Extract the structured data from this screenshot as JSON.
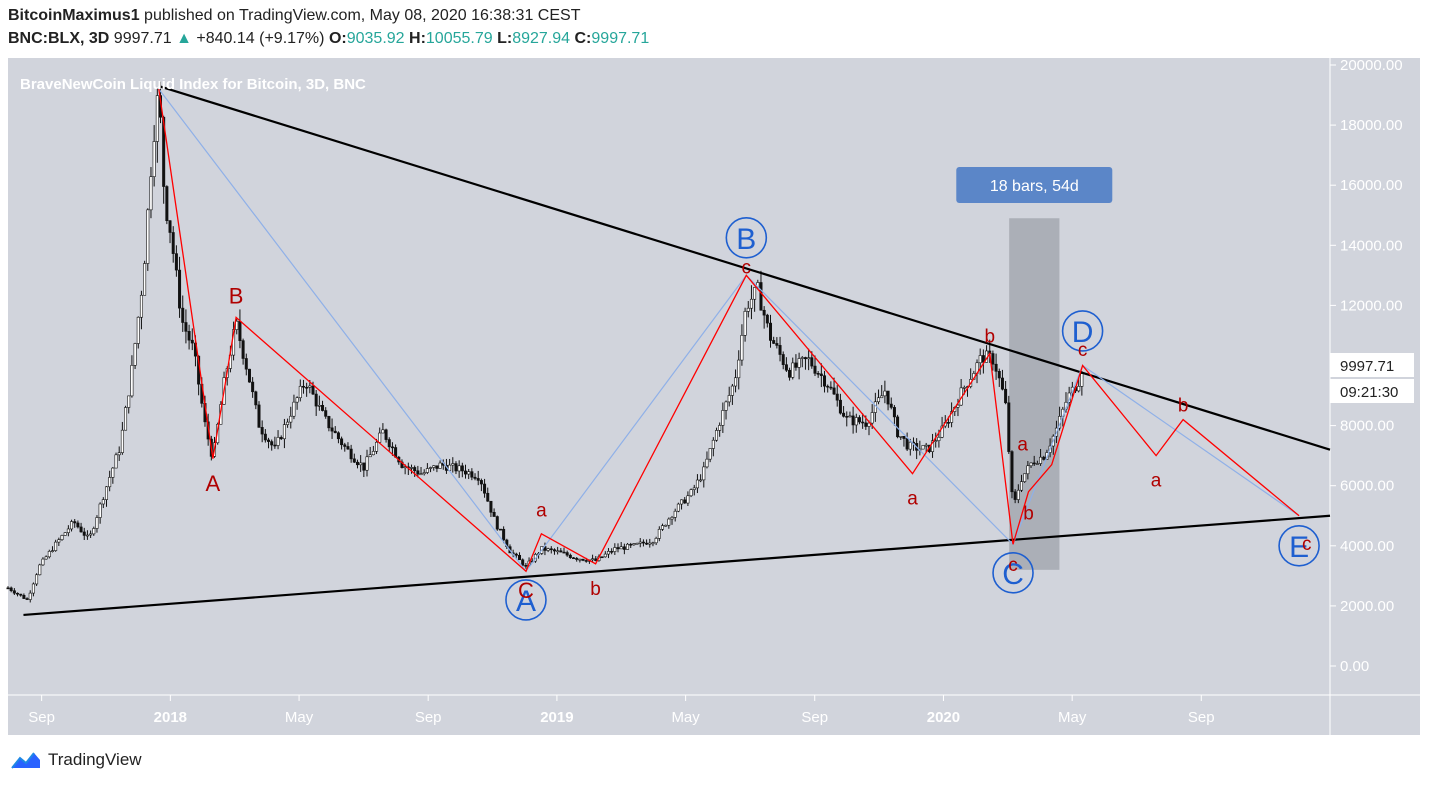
{
  "header": {
    "author": "BitcoinMaximus1",
    "published": " published on TradingView.com, May 08, 2020 16:38:31 CEST",
    "symbol": "BNC:BLX, 3D",
    "last": "9997.71",
    "change_arrow": "▲",
    "change": "+840.14 (+9.17%)",
    "o_label": "O:",
    "o_value": "9035.92",
    "h_label": "H:",
    "h_value": "10055.79",
    "l_label": "L:",
    "l_value": "8927.94",
    "c_label": "C:",
    "c_value": "9997.71"
  },
  "chart_data": {
    "type": "candlestick",
    "title": "BraveNewCoin Liquid Index for Bitcoin, 3D, BNC",
    "ylim": [
      -1000,
      20000
    ],
    "yticks": [
      "20000.00",
      "18000.00",
      "16000.00",
      "14000.00",
      "12000.00",
      "10000.00",
      "8000.00",
      "6000.00",
      "4000.00",
      "2000.00",
      "0.00"
    ],
    "xticks": [
      "Sep",
      "2018",
      "May",
      "Sep",
      "2019",
      "May",
      "Sep",
      "2020",
      "May",
      "Sep"
    ],
    "price_label": "9997.71",
    "countdown_label": "09:21:30",
    "range_box_label": "18 bars, 54d",
    "price_path": [
      [
        2017.58,
        2600
      ],
      [
        2017.63,
        2200
      ],
      [
        2017.66,
        3300
      ],
      [
        2017.7,
        4000
      ],
      [
        2017.75,
        4800
      ],
      [
        2017.79,
        4200
      ],
      [
        2017.83,
        5800
      ],
      [
        2017.87,
        7300
      ],
      [
        2017.9,
        9800
      ],
      [
        2017.93,
        13000
      ],
      [
        2017.955,
        17500
      ],
      [
        2017.97,
        19200
      ],
      [
        2017.985,
        15500
      ],
      [
        2018.0,
        14500
      ],
      [
        2018.03,
        11500
      ],
      [
        2018.06,
        10500
      ],
      [
        2018.09,
        8000
      ],
      [
        2018.11,
        6900
      ],
      [
        2018.14,
        9500
      ],
      [
        2018.17,
        11400
      ],
      [
        2018.2,
        9800
      ],
      [
        2018.23,
        8000
      ],
      [
        2018.27,
        7200
      ],
      [
        2018.31,
        8400
      ],
      [
        2018.35,
        9500
      ],
      [
        2018.4,
        8200
      ],
      [
        2018.45,
        7300
      ],
      [
        2018.5,
        6600
      ],
      [
        2018.55,
        7800
      ],
      [
        2018.6,
        6700
      ],
      [
        2018.65,
        6400
      ],
      [
        2018.7,
        6700
      ],
      [
        2018.76,
        6500
      ],
      [
        2018.8,
        6300
      ],
      [
        2018.84,
        4800
      ],
      [
        2018.88,
        3800
      ],
      [
        2018.92,
        3300
      ],
      [
        2018.96,
        3900
      ],
      [
        2019.0,
        3800
      ],
      [
        2019.05,
        3600
      ],
      [
        2019.1,
        3500
      ],
      [
        2019.15,
        3900
      ],
      [
        2019.2,
        4000
      ],
      [
        2019.25,
        4200
      ],
      [
        2019.3,
        5100
      ],
      [
        2019.35,
        5800
      ],
      [
        2019.38,
        6500
      ],
      [
        2019.42,
        8100
      ],
      [
        2019.46,
        9500
      ],
      [
        2019.49,
        12000
      ],
      [
        2019.52,
        12500
      ],
      [
        2019.55,
        11000
      ],
      [
        2019.6,
        9800
      ],
      [
        2019.65,
        10200
      ],
      [
        2019.7,
        9400
      ],
      [
        2019.75,
        8200
      ],
      [
        2019.8,
        8100
      ],
      [
        2019.85,
        9200
      ],
      [
        2019.88,
        7800
      ],
      [
        2019.91,
        7300
      ],
      [
        2019.96,
        7200
      ],
      [
        2020.0,
        7900
      ],
      [
        2020.05,
        9200
      ],
      [
        2020.1,
        10300
      ],
      [
        2020.13,
        10200
      ],
      [
        2020.16,
        8800
      ],
      [
        2020.18,
        5200
      ],
      [
        2020.2,
        6200
      ],
      [
        2020.23,
        6800
      ],
      [
        2020.26,
        7000
      ],
      [
        2020.29,
        7800
      ],
      [
        2020.32,
        8900
      ],
      [
        2020.35,
        9500
      ],
      [
        2020.36,
        10000
      ]
    ],
    "trendlines": [
      {
        "name": "upper",
        "points": [
          [
            2017.97,
            19300
          ],
          [
            2021.0,
            7200
          ]
        ]
      },
      {
        "name": "lower",
        "points": [
          [
            2017.62,
            1700
          ],
          [
            2021.0,
            5000
          ]
        ]
      }
    ],
    "wave_blue": [
      [
        2017.97,
        19200
      ],
      [
        2018.92,
        3150
      ],
      [
        2019.49,
        13000
      ],
      [
        2020.18,
        4050
      ],
      [
        2020.36,
        10000
      ],
      [
        2020.92,
        5000
      ]
    ],
    "wave_red": [
      [
        2017.97,
        19200
      ],
      [
        2018.11,
        6900
      ],
      [
        2018.17,
        11600
      ],
      [
        2018.92,
        3150
      ],
      [
        2018.96,
        4400
      ],
      [
        2019.1,
        3400
      ],
      [
        2019.49,
        13000
      ],
      [
        2019.92,
        6400
      ],
      [
        2020.12,
        10400
      ],
      [
        2020.18,
        4050
      ],
      [
        2020.22,
        5800
      ],
      [
        2020.28,
        6700
      ],
      [
        2020.36,
        10000
      ],
      [
        2020.55,
        7000
      ],
      [
        2020.62,
        8200
      ],
      [
        2020.92,
        5000
      ]
    ],
    "major_labels": [
      {
        "text": "A",
        "x": 2018.92,
        "y": 2200
      },
      {
        "text": "B",
        "x": 2019.49,
        "y": 14250
      },
      {
        "text": "C",
        "x": 2020.18,
        "y": 3100
      },
      {
        "text": "D",
        "x": 2020.36,
        "y": 11150
      },
      {
        "text": "E",
        "x": 2020.92,
        "y": 4000
      }
    ],
    "minor_labels": [
      {
        "text": "A",
        "x": 2018.11,
        "y": 6050
      },
      {
        "text": "B",
        "x": 2018.17,
        "y": 12300
      },
      {
        "text": "C",
        "x": 2018.92,
        "y": 2500
      },
      {
        "text": "a",
        "x": 2018.96,
        "y": 5200
      },
      {
        "text": "b",
        "x": 2019.1,
        "y": 2600
      },
      {
        "text": "c",
        "x": 2019.49,
        "y": 13300
      },
      {
        "text": "a",
        "x": 2019.92,
        "y": 5600
      },
      {
        "text": "b",
        "x": 2020.12,
        "y": 11000
      },
      {
        "text": "a",
        "x": 2020.205,
        "y": 7400
      },
      {
        "text": "b",
        "x": 2020.22,
        "y": 5100
      },
      {
        "text": "c",
        "x": 2020.18,
        "y": 3400
      },
      {
        "text": "c",
        "x": 2020.36,
        "y": 10550
      },
      {
        "text": "a",
        "x": 2020.55,
        "y": 6200
      },
      {
        "text": "b",
        "x": 2020.62,
        "y": 8700
      },
      {
        "text": "c",
        "x": 2020.94,
        "y": 4100
      }
    ],
    "range_box": {
      "x0": 2020.17,
      "x1": 2020.3,
      "y0": 3200,
      "y1": 14900
    },
    "colors": {
      "plot_bg": "#d1d4dc",
      "red": "#ff0000",
      "dark_red": "#b00000",
      "blue": "#1e5fd0",
      "light_blue": "#8fb0e8",
      "candle": "#111111",
      "label_box": "#5b86c8"
    }
  },
  "footer": {
    "brand": "TradingView"
  }
}
